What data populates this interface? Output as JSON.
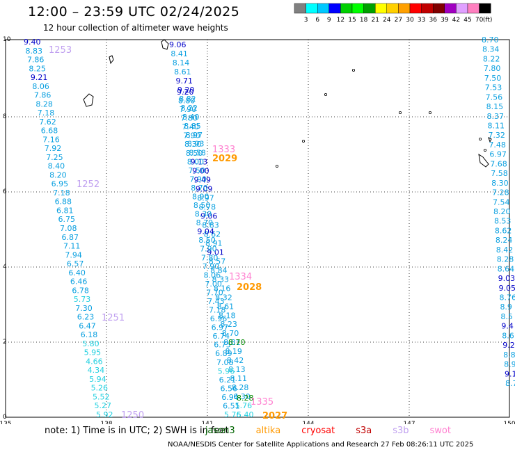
{
  "header": {
    "title": "12:00 – 23:59 UTC 02/24/2025",
    "subtitle": "12 hour collection of altimeter wave heights"
  },
  "legend": {
    "unit": "(ft)",
    "colors": [
      "#808080",
      "#00ffff",
      "#00c8ff",
      "#0000ff",
      "#00d000",
      "#00ff00",
      "#00a000",
      "#ffff00",
      "#ffd000",
      "#ffa000",
      "#ff0000",
      "#c00000",
      "#800000",
      "#a000c0",
      "#e0a0ff",
      "#ff80c0",
      "#000000"
    ],
    "labels": [
      "3",
      "6",
      "9",
      "12",
      "15",
      "18",
      "21",
      "24",
      "27",
      "30",
      "33",
      "36",
      "39",
      "42",
      "45",
      "70"
    ]
  },
  "axes": {
    "x_ticks": [
      "135",
      "138",
      "141",
      "144",
      "147",
      "150"
    ],
    "y_ticks": [
      "0",
      "2",
      "4",
      "6",
      "8",
      "10"
    ]
  },
  "track_labels": [
    {
      "text": "1253",
      "color": "#c0a0f0",
      "col": "c1",
      "row": 0
    },
    {
      "text": "1252",
      "color": "#c0a0f0",
      "col": "c1",
      "row": 1
    },
    {
      "text": "1251",
      "color": "#c0a0f0",
      "col": "c1",
      "row": 2
    },
    {
      "text": "1250",
      "color": "#c0a0f0",
      "col": "c1",
      "row": 3
    },
    {
      "text": "1333",
      "color": "#ff80d0",
      "col": "c2",
      "row": 0
    },
    {
      "text": "2029",
      "color": "#ff9900",
      "col": "c2",
      "row": 1
    },
    {
      "text": "1334",
      "color": "#ff80d0",
      "col": "c2",
      "row": 2
    },
    {
      "text": "2028",
      "color": "#ff9900",
      "col": "c2",
      "row": 3
    },
    {
      "text": "1335",
      "color": "#ff80d0",
      "col": "c2",
      "row": 4
    },
    {
      "text": "2027",
      "color": "#ff9900",
      "col": "c2",
      "row": 5
    }
  ],
  "left_track": [
    "9.40",
    "8.83",
    "7.86",
    "8.25",
    "9.21",
    "8.06",
    "7.86",
    "8.28",
    "7.18",
    "7.62",
    "6.68",
    "7.16",
    "7.92",
    "7.25",
    "8.40",
    "8.20",
    "6.95",
    "7.18",
    "6.88",
    "6.81",
    "6.75",
    "7.08",
    "6.87",
    "7.11",
    "7.94",
    "6.57",
    "6.40",
    "6.46",
    "6.78",
    "5.73",
    "7.30",
    "6.23",
    "6.47",
    "6.18",
    "5.80",
    "5.95",
    "4.66",
    "4.34",
    "5.94",
    "5.26",
    "5.52",
    "5.27",
    "5.92"
  ],
  "right_track": [
    "8.70",
    "8.34",
    "8.22",
    "7.80",
    "7.50",
    "7.53",
    "7.56",
    "8.15",
    "8.37",
    "8.11",
    "7.32",
    "7.48",
    "6.97",
    "7.68",
    "7.58",
    "8.30",
    "7.28",
    "7.54",
    "8.20",
    "8.53",
    "8.62",
    "8.24",
    "8.42",
    "8.28",
    "8.64",
    "9.03",
    "9.05",
    "8.76",
    "8.9",
    "8.5",
    "9.4",
    "8.6",
    "9.2",
    "8.8",
    "8.9",
    "9.1",
    "8.7"
  ],
  "mid_track": [
    "9.06",
    "8.41",
    "8.14",
    "8.61",
    "9.71",
    "9.20",
    "8.82",
    "8.22",
    "8.40",
    "8.85",
    "8.97",
    "8.93",
    "8.58",
    "9.13",
    "9.00",
    "9.49",
    "9.09",
    "8.97",
    "8.78",
    "9.06",
    "8.83",
    "8.62",
    "8.91",
    "9.01",
    "8.57",
    "8.84",
    "8.33",
    "8.16",
    "8.32",
    "8.61",
    "8.18",
    "8.23",
    "8.70",
    "8.81",
    "8.19",
    "8.42",
    "8.13",
    "8.11",
    "8.28",
    "6.30",
    "5.76",
    "5.40"
  ],
  "mid_track2": [
    "9.20",
    "8.80",
    "7.90",
    "7.80",
    "7.40",
    "7.90",
    "8.30",
    "8.50",
    "8.00",
    "7.50",
    "7.90",
    "8.70",
    "8.90",
    "8.50",
    "8.30",
    "8.70",
    "9.04",
    "8.50",
    "7.90",
    "7.80",
    "7.90",
    "8.06",
    "7.00",
    "7.70",
    "7.43",
    "7.18",
    "6.96",
    "6.97",
    "6.74",
    "6.75",
    "6.89",
    "7.08",
    "5.96",
    "6.21",
    "6.56",
    "6.94",
    "6.51",
    "5.76"
  ],
  "note": {
    "prefix": "note:  1) Time is in UTC;  2) SWH is in feet",
    "sats": [
      {
        "name": "jason3",
        "color": "#006400"
      },
      {
        "name": "altika",
        "color": "#ff9900"
      },
      {
        "name": "cryosat",
        "color": "#ff0000"
      },
      {
        "name": "s3a",
        "color": "#c00000"
      },
      {
        "name": "s3b",
        "color": "#c0a0f0"
      },
      {
        "name": "swot",
        "color": "#ff80d0"
      }
    ]
  },
  "footer": "NOAA/NESDIS Center for Satellite Applications and Research   27 Feb 08:26:11 UTC 2025"
}
